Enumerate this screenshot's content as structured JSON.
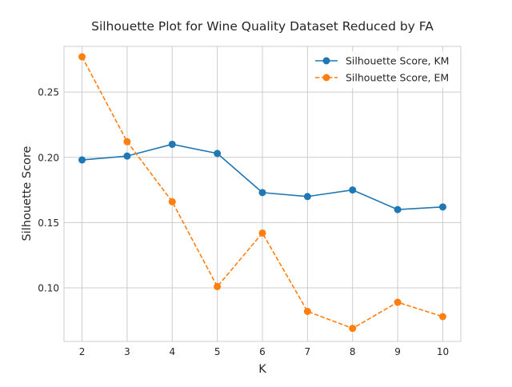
{
  "chart_data": {
    "type": "line",
    "title": "Silhouette Plot for Wine Quality Dataset Reduced by FA",
    "xlabel": "K",
    "ylabel": "Silhouette Score",
    "x": [
      2,
      3,
      4,
      5,
      6,
      7,
      8,
      9,
      10
    ],
    "xlim": [
      1.6,
      10.4
    ],
    "ylim": [
      0.059,
      0.285
    ],
    "xticks": [
      2,
      3,
      4,
      5,
      6,
      7,
      8,
      9,
      10
    ],
    "yticks": [
      0.1,
      0.15,
      0.2,
      0.25
    ],
    "ytick_labels": [
      "0.10",
      "0.15",
      "0.20",
      "0.25"
    ],
    "grid": true,
    "legend_position": "top-right",
    "series": [
      {
        "name": "Silhouette Score, KM",
        "values": [
          0.198,
          0.201,
          0.21,
          0.203,
          0.173,
          0.17,
          0.175,
          0.16,
          0.162
        ],
        "color": "#1f77b4",
        "linestyle": "solid",
        "marker": "circle"
      },
      {
        "name": "Silhouette Score, EM",
        "values": [
          0.277,
          0.212,
          0.166,
          0.101,
          0.142,
          0.082,
          0.069,
          0.089,
          0.078
        ],
        "color": "#ff7f0e",
        "linestyle": "dashed",
        "marker": "circle"
      }
    ]
  }
}
